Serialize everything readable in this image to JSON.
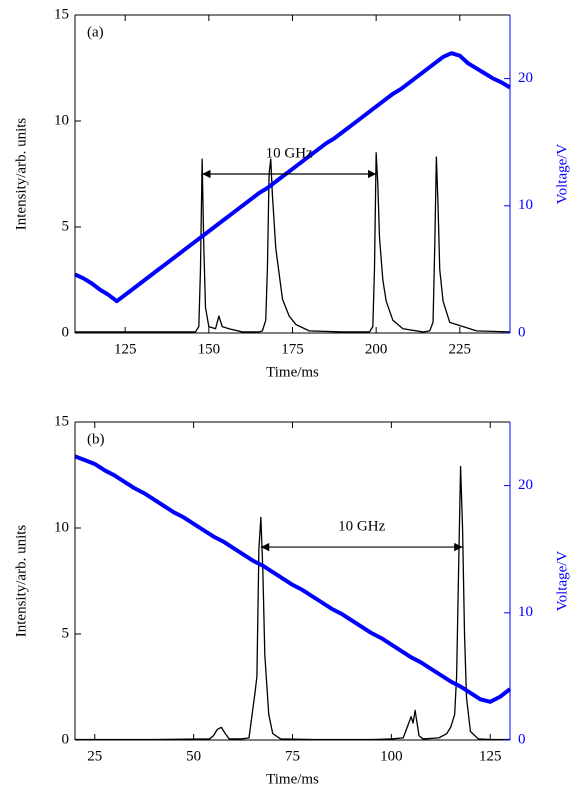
{
  "chart_data": [
    {
      "type": "line",
      "panel_label": "(a)",
      "xlabel": "Time/ms",
      "ylabel": "Intensity/arb. units",
      "y2label": "Voltage/V",
      "xlim": [
        110,
        240
      ],
      "ylim": [
        0,
        15
      ],
      "y2lim": [
        0,
        25
      ],
      "xticks": [
        125,
        150,
        175,
        200,
        225
      ],
      "yticks": [
        0,
        5,
        10,
        15
      ],
      "y2ticks": [
        0,
        10,
        20
      ],
      "series": [
        {
          "color": "#000000",
          "x": [
            110,
            120,
            130,
            140,
            146,
            147,
            147.5,
            148,
            148.5,
            149,
            150,
            152,
            153,
            154,
            156,
            160,
            165,
            166,
            167,
            167.5,
            168,
            168.5,
            169,
            170,
            171,
            172,
            174,
            176,
            180,
            190,
            198,
            199,
            199.5,
            200,
            200.5,
            201,
            202,
            203,
            205,
            208,
            214,
            216,
            217,
            217.5,
            218,
            218.5,
            219,
            220,
            222,
            230,
            240
          ],
          "values": [
            0.05,
            0.05,
            0.05,
            0.05,
            0.05,
            0.3,
            3,
            8.2,
            4,
            1.2,
            0.3,
            0.2,
            0.8,
            0.3,
            0.2,
            0.05,
            0.05,
            0.1,
            0.6,
            3,
            7.5,
            8.2,
            6.5,
            4,
            2.8,
            1.6,
            0.8,
            0.4,
            0.1,
            0.05,
            0.05,
            0.3,
            3,
            8.5,
            7,
            4.5,
            2.5,
            1.5,
            0.6,
            0.2,
            0.05,
            0.1,
            0.5,
            4,
            8.3,
            6,
            3,
            1.5,
            0.5,
            0.1,
            0.05
          ]
        },
        {
          "color": "#0000ff",
          "axis": "y2",
          "x": [
            110,
            112.5,
            115,
            117.5,
            120,
            122.5,
            125,
            127.5,
            130,
            132.5,
            135,
            137.5,
            140,
            142.5,
            145,
            147.5,
            150,
            152.5,
            155,
            157.5,
            160,
            162.5,
            165,
            167.5,
            170,
            172.5,
            175,
            177.5,
            180,
            182.5,
            185,
            187.5,
            190,
            192.5,
            195,
            197.5,
            200,
            202.5,
            205,
            207.5,
            210,
            212.5,
            215,
            217.5,
            220,
            222.5,
            225,
            227.5,
            230,
            232.5,
            235,
            237.5,
            240
          ],
          "values": [
            4.6,
            4.3,
            3.9,
            3.4,
            3.0,
            2.5,
            3.0,
            3.5,
            4.0,
            4.5,
            5.0,
            5.5,
            6.0,
            6.5,
            7.0,
            7.5,
            8.0,
            8.5,
            9.0,
            9.5,
            10.0,
            10.5,
            11.0,
            11.4,
            11.9,
            12.4,
            12.9,
            13.4,
            13.9,
            14.4,
            14.9,
            15.3,
            15.8,
            16.3,
            16.8,
            17.3,
            17.8,
            18.3,
            18.8,
            19.2,
            19.7,
            20.2,
            20.7,
            21.2,
            21.7,
            22.0,
            21.8,
            21.2,
            20.8,
            20.4,
            20.0,
            19.7,
            19.3
          ]
        }
      ],
      "annotations": [
        {
          "text": "10 GHz",
          "x": [
            148,
            200
          ],
          "y": 7.5
        }
      ]
    },
    {
      "type": "line",
      "panel_label": "(b)",
      "xlabel": "Time/ms",
      "ylabel": "Intensity/arb. units",
      "y2label": "Voltage/V",
      "xlim": [
        20,
        130
      ],
      "ylim": [
        0,
        15
      ],
      "y2lim": [
        0,
        25
      ],
      "xticks": [
        25,
        50,
        75,
        100,
        125
      ],
      "yticks": [
        0,
        5,
        10,
        15
      ],
      "y2ticks": [
        0,
        10,
        20
      ],
      "series": [
        {
          "color": "#000000",
          "x": [
            20,
            40,
            54,
            55,
            56,
            57,
            58,
            59,
            62,
            64,
            65,
            65.5,
            66,
            66.5,
            67,
            67.5,
            68,
            69,
            70,
            72,
            80,
            95,
            100,
            103,
            104,
            105,
            105.5,
            106,
            107,
            108,
            112,
            114,
            115,
            116,
            116.5,
            117,
            117.5,
            118,
            118.5,
            119,
            120,
            122,
            125,
            130
          ],
          "values": [
            0.02,
            0.02,
            0.05,
            0.2,
            0.5,
            0.6,
            0.3,
            0.05,
            0.05,
            0.1,
            1.5,
            2.2,
            3,
            9,
            10.5,
            8,
            4,
            1.2,
            0.3,
            0.05,
            0.02,
            0.02,
            0.05,
            0.1,
            0.6,
            1.1,
            0.8,
            1.4,
            0.2,
            0.05,
            0.1,
            0.3,
            0.6,
            1.2,
            3,
            8,
            12.9,
            10,
            5,
            2,
            0.4,
            0.05,
            0.02,
            0.02
          ]
        },
        {
          "color": "#0000ff",
          "axis": "y2",
          "x": [
            20,
            22.5,
            25,
            27.5,
            30,
            32.5,
            35,
            37.5,
            40,
            42.5,
            45,
            47.5,
            50,
            52.5,
            55,
            57.5,
            60,
            62.5,
            65,
            67.5,
            70,
            72.5,
            75,
            77.5,
            80,
            82.5,
            85,
            87.5,
            90,
            92.5,
            95,
            97.5,
            100,
            102.5,
            105,
            107.5,
            110,
            112.5,
            115,
            117.5,
            120,
            122.5,
            125,
            127.5,
            130
          ],
          "values": [
            22.3,
            22.0,
            21.7,
            21.2,
            20.8,
            20.3,
            19.8,
            19.4,
            18.9,
            18.4,
            17.9,
            17.5,
            17.0,
            16.5,
            16.0,
            15.6,
            15.1,
            14.6,
            14.1,
            13.7,
            13.2,
            12.7,
            12.2,
            11.8,
            11.3,
            10.8,
            10.3,
            9.9,
            9.4,
            8.9,
            8.4,
            8.0,
            7.5,
            7.0,
            6.5,
            6.1,
            5.6,
            5.1,
            4.6,
            4.2,
            3.7,
            3.2,
            3.0,
            3.4,
            4.0
          ]
        }
      ],
      "annotations": [
        {
          "text": "10 GHz",
          "x": [
            67,
            118
          ],
          "y": 9.1
        }
      ]
    }
  ]
}
